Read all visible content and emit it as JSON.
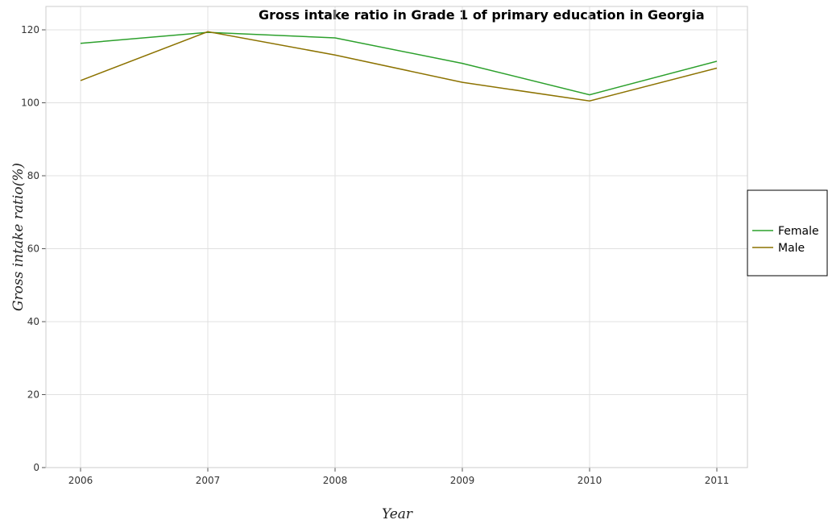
{
  "chart_data": {
    "type": "line",
    "title": "Gross intake ratio in Grade 1 of primary education in Georgia",
    "xlabel": "Year",
    "ylabel": "Gross intake ratio(%)",
    "categories": [
      "2006",
      "2007",
      "2008",
      "2009",
      "2010",
      "2011"
    ],
    "ylim": [
      0,
      120
    ],
    "yticks": [
      "0",
      "20",
      "40",
      "60",
      "80",
      "100",
      "120"
    ],
    "grid": true,
    "legend_position": "right",
    "series": [
      {
        "name": "Female",
        "color": "#2ca02c",
        "values": [
          116.3,
          119.3,
          117.8,
          110.8,
          102.2,
          111.4
        ]
      },
      {
        "name": "Male",
        "color": "#8c7200",
        "values": [
          106.1,
          119.5,
          113.1,
          105.6,
          100.5,
          109.5
        ]
      }
    ]
  }
}
